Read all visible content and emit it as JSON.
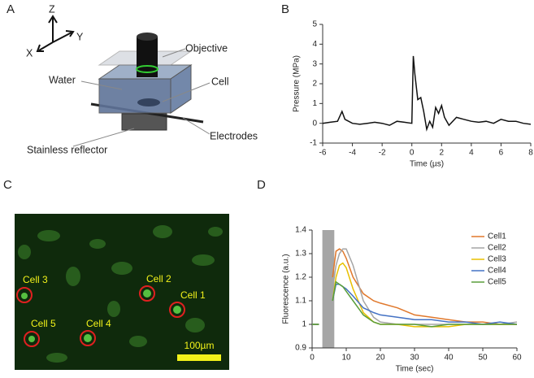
{
  "panels": [
    "A",
    "B",
    "C",
    "D"
  ],
  "diagram": {
    "axes": [
      "Z",
      "X",
      "Y"
    ],
    "labels": [
      "Objective",
      "Water",
      "Cell",
      "Electrodes",
      "Stainless reflector"
    ]
  },
  "micrograph": {
    "cells": [
      "Cell 1",
      "Cell 2",
      "Cell 3",
      "Cell 4",
      "Cell 5"
    ],
    "scale_bar": "100µm"
  },
  "chart_data": [
    {
      "type": "line",
      "xlabel": "Time (µs)",
      "ylabel": "Pressure (MPa)",
      "color": "#111111",
      "x": [
        -6,
        -5.5,
        -5,
        -4.7,
        -4.5,
        -4,
        -3.5,
        -3,
        -2.5,
        -2,
        -1.5,
        -1,
        -0.5,
        0,
        0.1,
        0.2,
        0.4,
        0.6,
        0.8,
        1,
        1.2,
        1.4,
        1.6,
        1.8,
        2,
        2.2,
        2.5,
        3,
        3.5,
        4,
        4.5,
        5,
        5.5,
        6,
        6.5,
        7,
        7.5,
        8
      ],
      "values": [
        0,
        0.05,
        0.1,
        0.6,
        0.2,
        0,
        -0.05,
        0,
        0.05,
        0,
        -0.1,
        0.1,
        0.05,
        0,
        3.4,
        2.5,
        1.2,
        1.3,
        0.6,
        -0.3,
        0.1,
        -0.2,
        0.8,
        0.5,
        0.9,
        0.3,
        -0.1,
        0.3,
        0.2,
        0.1,
        0.05,
        0.1,
        0,
        0.2,
        0.1,
        0.1,
        0,
        -0.05
      ],
      "xlim": [
        -6,
        8
      ],
      "xticks": [
        -6,
        -4,
        -2,
        0,
        2,
        4,
        6,
        8
      ],
      "ylim": [
        -1,
        5
      ],
      "yticks": [
        -1,
        0,
        1,
        2,
        3,
        4,
        5
      ]
    },
    {
      "type": "line",
      "xlabel": "Time (sec)",
      "ylabel": "Fluorescence (a.u.)",
      "band": [
        3,
        6.5
      ],
      "band_color": "#a6a6a6",
      "x": [
        0,
        2,
        4,
        5,
        6,
        7,
        8,
        9,
        10,
        12,
        15,
        18,
        20,
        25,
        30,
        35,
        40,
        45,
        50,
        55,
        60
      ],
      "series": [
        {
          "name": "Cell1",
          "color": "#e0782c",
          "values": [
            1,
            1,
            null,
            null,
            1.2,
            1.31,
            1.32,
            1.31,
            1.28,
            1.2,
            1.13,
            1.1,
            1.09,
            1.07,
            1.04,
            1.03,
            1.02,
            1.01,
            1.01,
            1.0,
            1.0
          ]
        },
        {
          "name": "Cell2",
          "color": "#a5a5a5",
          "values": [
            1,
            1,
            null,
            null,
            1.15,
            1.25,
            1.3,
            1.32,
            1.32,
            1.25,
            1.1,
            1.03,
            1.01,
            1.0,
            1.0,
            1.0,
            1.0,
            1.0,
            1.0,
            1.0,
            1.01
          ]
        },
        {
          "name": "Cell3",
          "color": "#e8c000",
          "values": [
            1,
            1,
            null,
            null,
            1.1,
            1.2,
            1.25,
            1.26,
            1.24,
            1.15,
            1.05,
            1.01,
            1.0,
            1.0,
            0.99,
            0.99,
            0.99,
            1.0,
            1.0,
            1.0,
            1.0
          ]
        },
        {
          "name": "Cell4",
          "color": "#4472c4",
          "values": [
            1,
            1,
            null,
            null,
            1.1,
            1.17,
            1.17,
            1.16,
            1.15,
            1.12,
            1.07,
            1.05,
            1.04,
            1.03,
            1.02,
            1.02,
            1.01,
            1.01,
            1.0,
            1.01,
            1.0
          ]
        },
        {
          "name": "Cell5",
          "color": "#5a9e3a",
          "values": [
            1,
            1,
            null,
            null,
            1.1,
            1.18,
            1.17,
            1.16,
            1.14,
            1.1,
            1.04,
            1.01,
            1.0,
            1.0,
            1.0,
            0.99,
            1.0,
            1.0,
            1.0,
            1.0,
            1.0
          ]
        }
      ],
      "xlim": [
        0,
        60
      ],
      "xticks": [
        0,
        10,
        20,
        30,
        40,
        50,
        60
      ],
      "ylim": [
        0.9,
        1.4
      ],
      "yticks": [
        0.9,
        1,
        1.1,
        1.2,
        1.3,
        1.4
      ]
    }
  ]
}
